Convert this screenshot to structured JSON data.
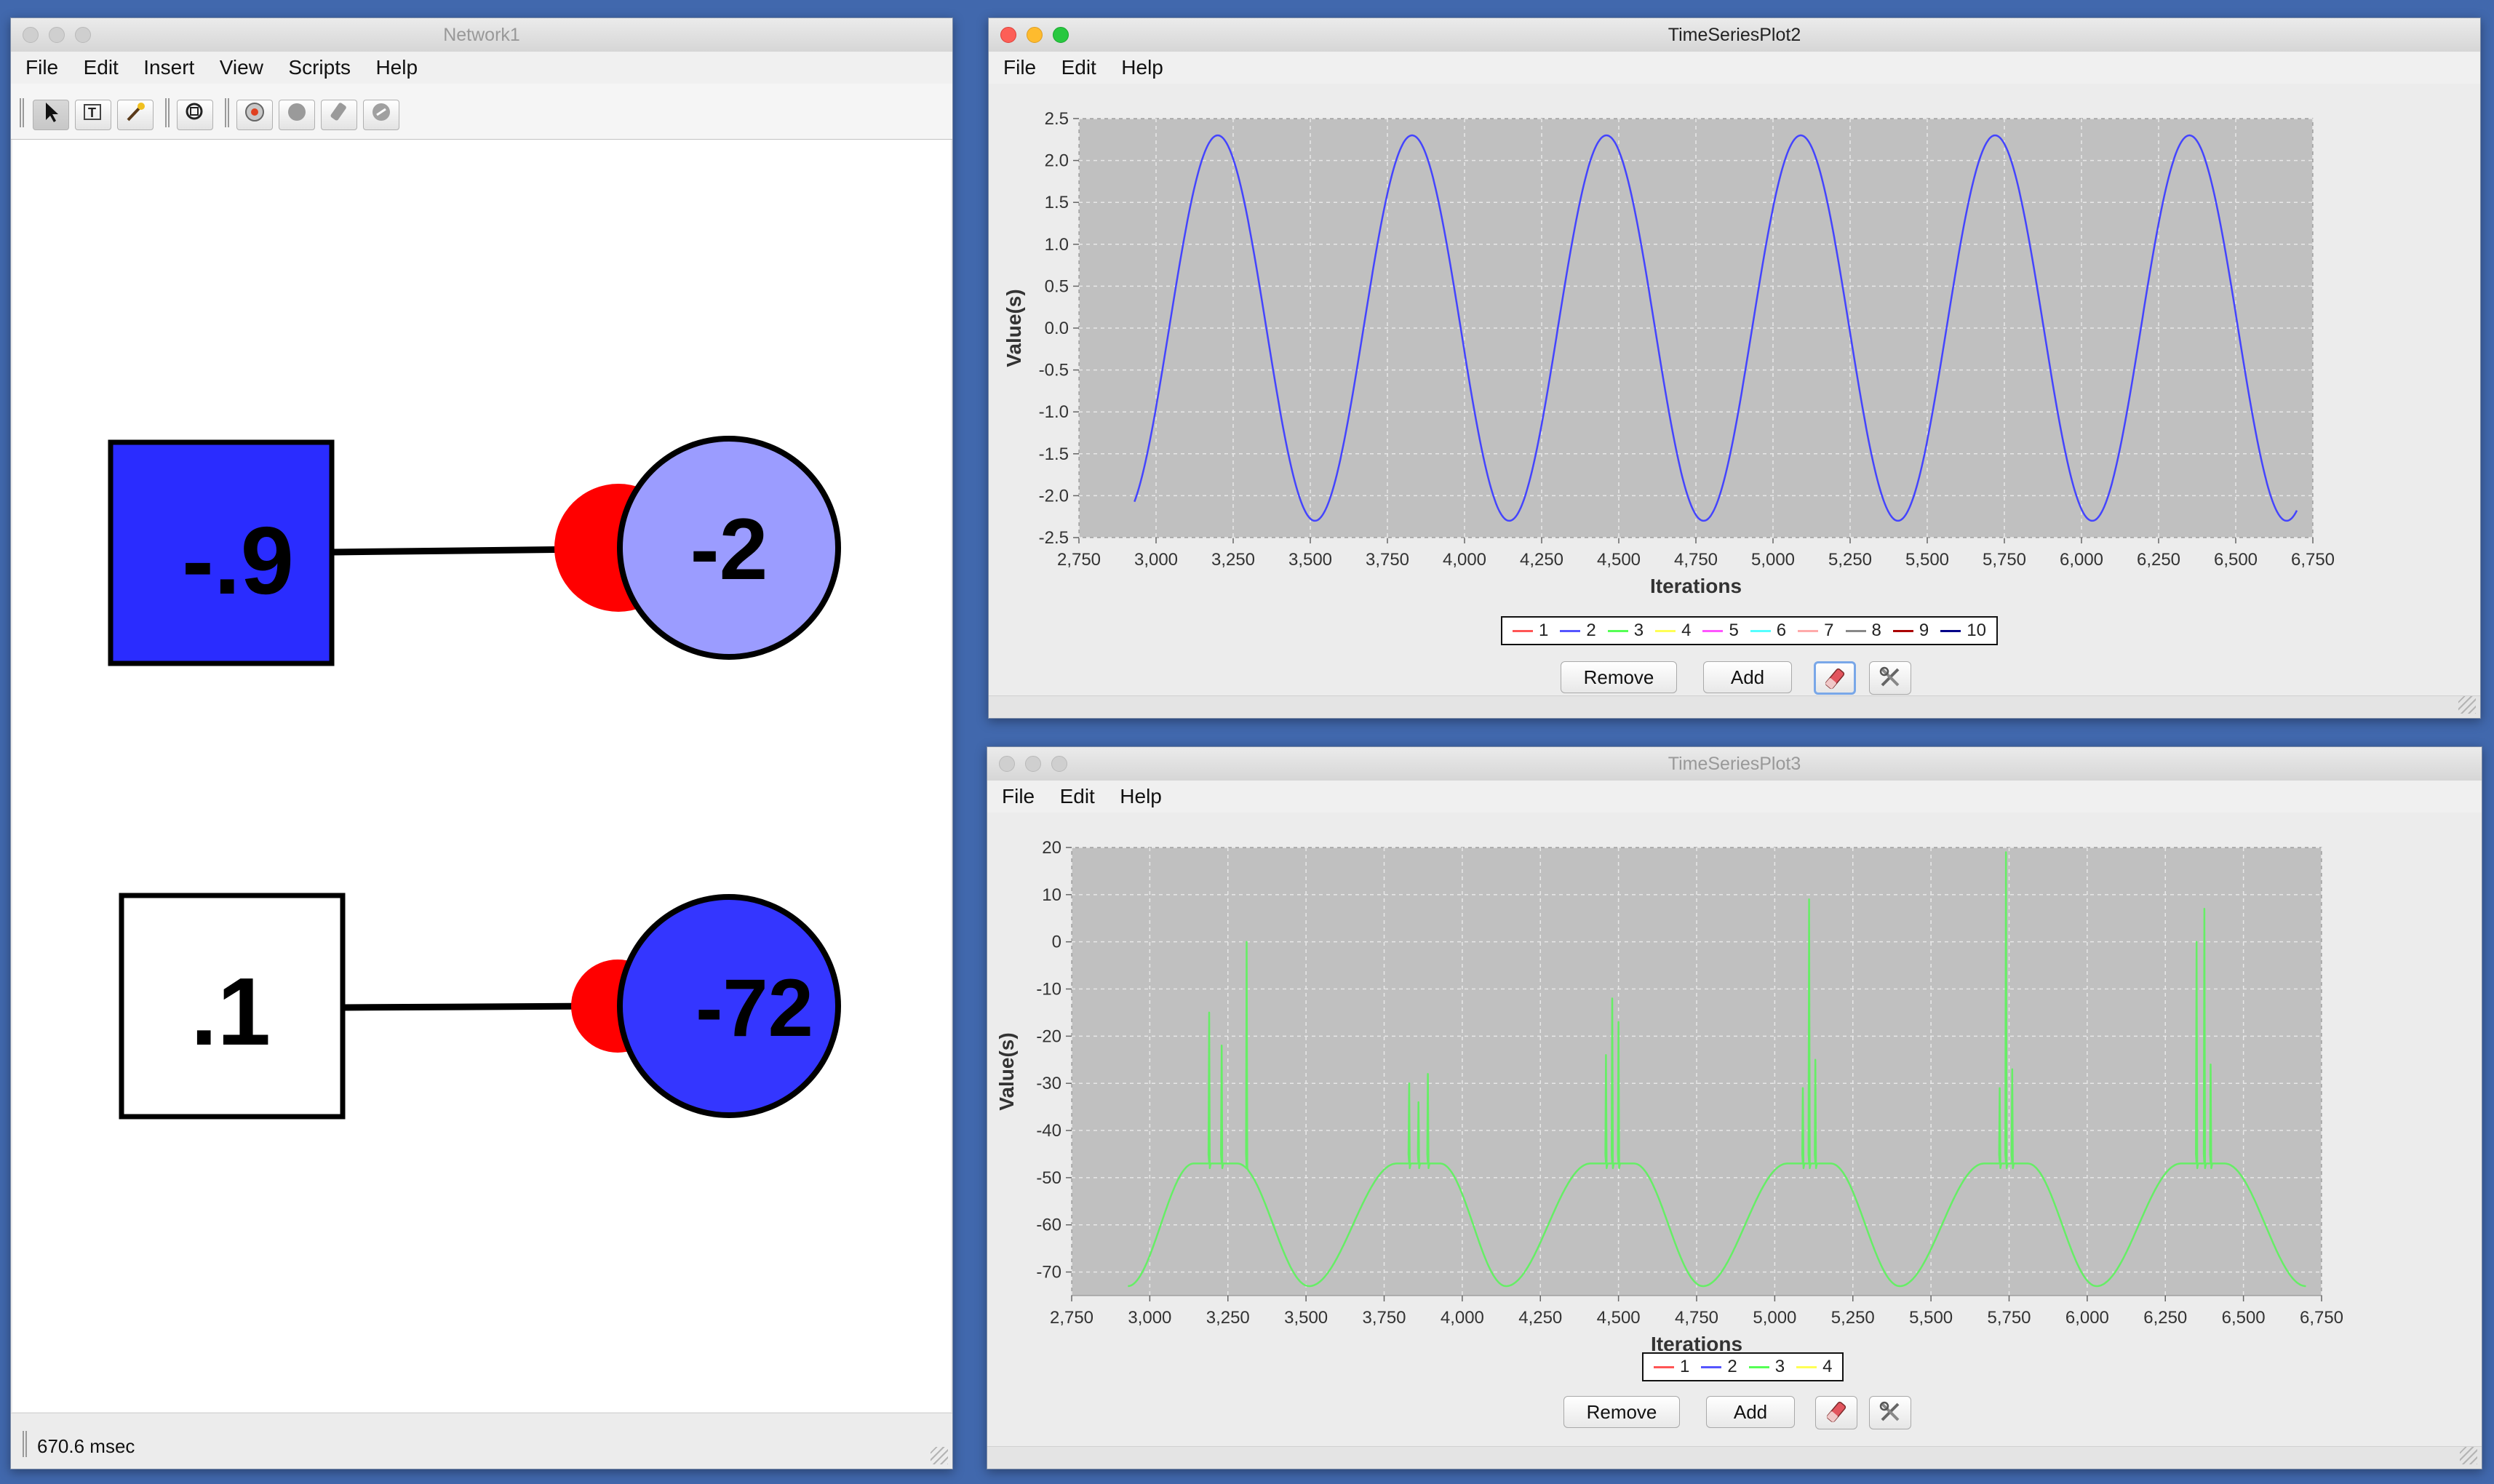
{
  "network_window": {
    "title": "Network1",
    "menu": [
      "File",
      "Edit",
      "Insert",
      "View",
      "Scripts",
      "Help"
    ],
    "toolbar_icons": [
      "select-arrow-icon",
      "text-tool-icon",
      "wand-icon",
      "zoom-icon",
      "network-icon",
      "circle-icon",
      "eraser-icon",
      "link-icon"
    ],
    "nodes": {
      "input1_value": "-.9",
      "neuron1_value": "-2",
      "input2_value": ".1",
      "neuron2_value": "-72"
    },
    "colors": {
      "input1_fill": "#2a2cff",
      "neuron1_fill": "#9b9cff",
      "input2_fill": "#ffffff",
      "neuron2_fill": "#3436ff",
      "synapse": "#ff0000"
    },
    "status": "670.6 msec"
  },
  "plot2_window": {
    "title": "TimeSeriesPlot2",
    "menu": [
      "File",
      "Edit",
      "Help"
    ],
    "legend": [
      "1",
      "2",
      "3",
      "4",
      "5",
      "6",
      "7",
      "8",
      "9",
      "10"
    ],
    "legend_colors": [
      "#ff5555",
      "#5555ff",
      "#55ff55",
      "#ffff55",
      "#ff55ff",
      "#55ffff",
      "#ffaaaa",
      "#888888",
      "#aa0000",
      "#000088"
    ],
    "buttons": {
      "remove": "Remove",
      "add": "Add"
    },
    "icons": [
      "eraser-icon",
      "tools-icon"
    ],
    "chart_data": {
      "type": "line",
      "xlabel": "Iterations",
      "ylabel": "Value(s)",
      "xlim": [
        2750,
        6750
      ],
      "ylim": [
        -2.5,
        2.5
      ],
      "xticks": [
        "2,750",
        "3,000",
        "3,250",
        "3,500",
        "3,750",
        "4,000",
        "4,250",
        "4,500",
        "4,750",
        "5,000",
        "5,250",
        "5,500",
        "5,750",
        "6,000",
        "6,250",
        "6,500",
        "6,750"
      ],
      "yticks": [
        "2.5",
        "2.0",
        "1.5",
        "1.0",
        "0.5",
        "0.0",
        "-0.5",
        "-1.0",
        "-1.5",
        "-2.0",
        "-2.5"
      ],
      "grid": true,
      "series": [
        {
          "name": "2",
          "color": "#4444ff",
          "x_start": 2930,
          "x_end": 6700,
          "amplitude": 2.3,
          "period": 630,
          "peak_at": 3200
        }
      ]
    }
  },
  "plot3_window": {
    "title": "TimeSeriesPlot3",
    "menu": [
      "File",
      "Edit",
      "Help"
    ],
    "legend": [
      "1",
      "2",
      "3",
      "4"
    ],
    "legend_colors": [
      "#ff5555",
      "#5555ff",
      "#55ff55",
      "#ffff55"
    ],
    "buttons": {
      "remove": "Remove",
      "add": "Add"
    },
    "icons": [
      "eraser-icon",
      "tools-icon"
    ],
    "chart_data": {
      "type": "line",
      "xlabel": "Iterations",
      "ylabel": "Value(s)",
      "xlim": [
        2750,
        6750
      ],
      "ylim": [
        -75,
        20
      ],
      "xticks": [
        "2,750",
        "3,000",
        "3,250",
        "3,500",
        "3,750",
        "4,000",
        "4,250",
        "4,500",
        "4,750",
        "5,000",
        "5,250",
        "5,500",
        "5,750",
        "6,000",
        "6,250",
        "6,500",
        "6,750"
      ],
      "yticks": [
        "20",
        "10",
        "0",
        "-10",
        "-20",
        "-30",
        "-40",
        "-50",
        "-60",
        "-70"
      ],
      "grid": true,
      "series": [
        {
          "name": "3",
          "color": "#66ee66",
          "x_start": 2930,
          "x_end": 6700,
          "baseline_min": -73,
          "burst_plateau": -47,
          "troughs": [
            3510,
            4140,
            4770,
            5400,
            6030
          ],
          "bursts": [
            {
              "center": 3210,
              "spikes": [
                [
                  3190,
                  -15
                ],
                [
                  3230,
                  -22
                ],
                [
                  3310,
                  0
                ]
              ]
            },
            {
              "center": 3860,
              "spikes": [
                [
                  3830,
                  -30
                ],
                [
                  3860,
                  -34
                ],
                [
                  3890,
                  -28
                ]
              ]
            },
            {
              "center": 4480,
              "spikes": [
                [
                  4460,
                  -24
                ],
                [
                  4480,
                  -12
                ],
                [
                  4500,
                  -17
                ]
              ]
            },
            {
              "center": 5110,
              "spikes": [
                [
                  5090,
                  -31
                ],
                [
                  5110,
                  9
                ],
                [
                  5130,
                  -25
                ]
              ]
            },
            {
              "center": 5740,
              "spikes": [
                [
                  5720,
                  -31
                ],
                [
                  5740,
                  19
                ],
                [
                  5760,
                  -27
                ]
              ]
            },
            {
              "center": 6370,
              "spikes": [
                [
                  6350,
                  0
                ],
                [
                  6375,
                  7
                ],
                [
                  6395,
                  -26
                ]
              ]
            }
          ]
        }
      ]
    }
  }
}
